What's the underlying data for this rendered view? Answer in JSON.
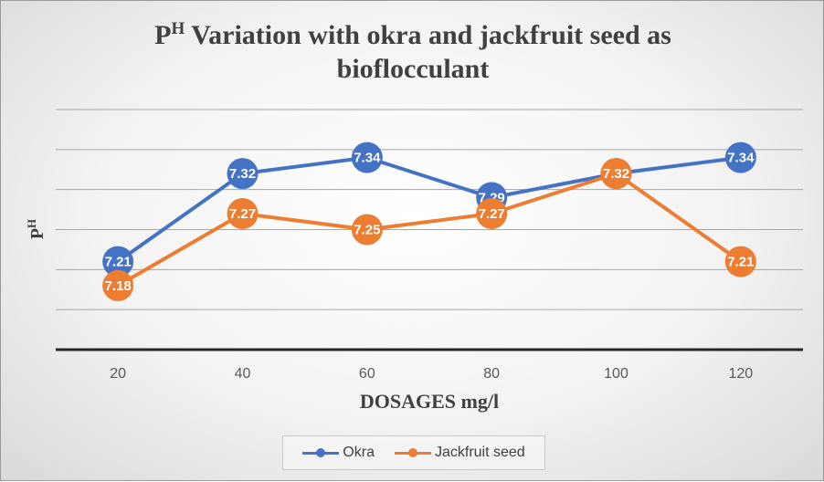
{
  "chart_data": {
    "type": "line",
    "title": "PH Variation with okra and jackfruit seed as biofloculant",
    "title_lines": [
      {
        "main": "P",
        "sup": "H",
        "rest": " Variation with okra and jackfruit seed as"
      },
      {
        "main": "bioflocculant",
        "sup": "",
        "rest": ""
      }
    ],
    "xlabel": "DOSAGES mg/l",
    "ylabel": {
      "main": "P",
      "sup": "H"
    },
    "categories": [
      "20",
      "40",
      "60",
      "80",
      "100",
      "120"
    ],
    "ylim": [
      7.1,
      7.4
    ],
    "y_gridlines": [
      7.1,
      7.15,
      7.2,
      7.25,
      7.3,
      7.35,
      7.4
    ],
    "grid": true,
    "legend_position": "bottom",
    "series": [
      {
        "name": "Okra",
        "color": "#4472C4",
        "values": [
          7.21,
          7.32,
          7.34,
          7.29,
          7.32,
          7.34
        ],
        "labels": [
          "7.21",
          "7.32",
          "7.34",
          "7.29",
          "7.32",
          "7.34"
        ]
      },
      {
        "name": "Jackfruit seed",
        "color": "#ED7D31",
        "values": [
          7.18,
          7.27,
          7.25,
          7.27,
          7.32,
          7.21
        ],
        "labels": [
          "7.18",
          "7.27",
          "7.25",
          "7.27",
          "7.32",
          "7.21"
        ]
      }
    ]
  }
}
